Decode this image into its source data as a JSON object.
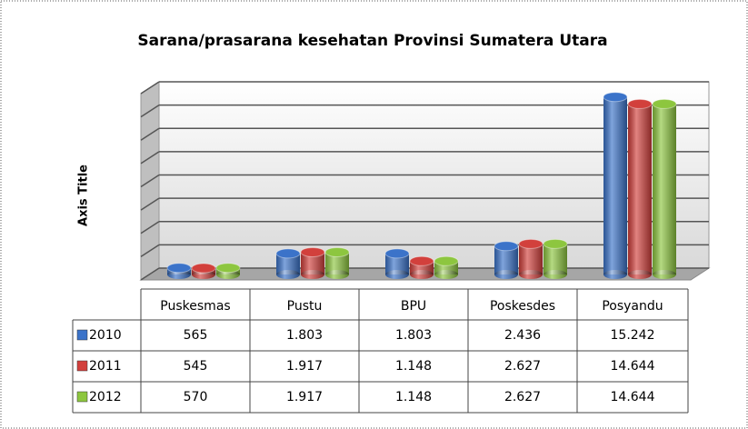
{
  "chart_data": {
    "type": "bar",
    "title": "Sarana/prasarana kesehatan Provinsi Sumatera Utara",
    "y_axis_label": "Axis Title",
    "categories": [
      "Puskesmas",
      "Pustu",
      "BPU",
      "Poskesdes",
      "Posyandu"
    ],
    "series": [
      {
        "name": "2010",
        "color": "#3b73c9",
        "values": [
          565,
          1803,
          1803,
          2436,
          15242
        ],
        "value_labels": [
          "565",
          "1.803",
          "1.803",
          "2.436",
          "15.242"
        ]
      },
      {
        "name": "2011",
        "color": "#d2403c",
        "values": [
          545,
          1917,
          1148,
          2627,
          14644
        ],
        "value_labels": [
          "545",
          "1.917",
          "1.148",
          "2.627",
          "14.644"
        ]
      },
      {
        "name": "2012",
        "color": "#8dc63f",
        "values": [
          570,
          1917,
          1148,
          2627,
          14644
        ],
        "value_labels": [
          "570",
          "1.917",
          "1.148",
          "2.627",
          "14.644"
        ]
      }
    ],
    "ylim": [
      0,
      16000
    ],
    "yticks": [
      0,
      2000,
      4000,
      6000,
      8000,
      10000,
      12000,
      14000,
      16000
    ],
    "grid": true
  }
}
